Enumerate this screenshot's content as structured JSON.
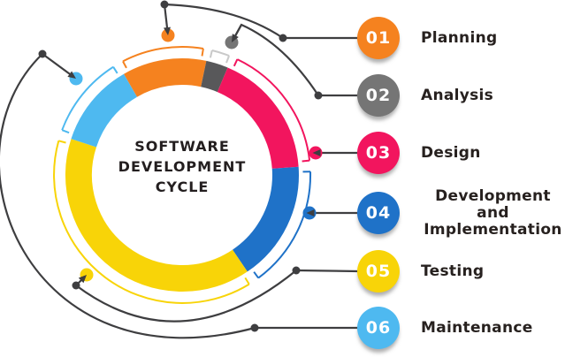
{
  "center_title": "SOFTWARE\nDEVELOPMENT\nCYCLE",
  "colors": {
    "connector_line": "#3E3E40",
    "label_text": "#27211F",
    "center_text": "#231E1F"
  },
  "items": [
    {
      "id": "planning",
      "number": "01",
      "label": "Planning",
      "color": "#F5821F"
    },
    {
      "id": "analysis",
      "number": "02",
      "label": "Analysis",
      "color": "#757575",
      "segment_color": "#58585A",
      "bracket_color": "#C9C9C9"
    },
    {
      "id": "design",
      "number": "03",
      "label": "Design",
      "color": "#F2155E"
    },
    {
      "id": "development",
      "number": "04",
      "label": "Development and\nImplementation",
      "color": "#1F72C8"
    },
    {
      "id": "testing",
      "number": "05",
      "label": "Testing",
      "color": "#F8D408"
    },
    {
      "id": "maintenance",
      "number": "06",
      "label": "Maintenance",
      "color": "#4EB9F0"
    }
  ],
  "chart_data": {
    "type": "pie",
    "subtype": "donut",
    "title": "SOFTWARE DEVELOPMENT CYCLE",
    "legend_position": "right",
    "segments": [
      {
        "label": "Planning",
        "color": "#F5821F",
        "start_deg": 330,
        "end_deg": 372,
        "span_deg": 42,
        "percent": 11.7
      },
      {
        "label": "Analysis",
        "color": "#58585A",
        "start_deg": 12,
        "end_deg": 23,
        "span_deg": 11,
        "percent": 3.1
      },
      {
        "label": "Design",
        "color": "#F2155E",
        "start_deg": 23,
        "end_deg": 86,
        "span_deg": 63,
        "percent": 17.5
      },
      {
        "label": "Development and Implementation",
        "color": "#1F72C8",
        "start_deg": 86,
        "end_deg": 146,
        "span_deg": 60,
        "percent": 16.7
      },
      {
        "label": "Testing",
        "color": "#F8D408",
        "start_deg": 146,
        "end_deg": 288,
        "span_deg": 142,
        "percent": 39.4
      },
      {
        "label": "Maintenance",
        "color": "#4EB9F0",
        "start_deg": 288,
        "end_deg": 330,
        "span_deg": 42,
        "percent": 11.7
      }
    ]
  }
}
